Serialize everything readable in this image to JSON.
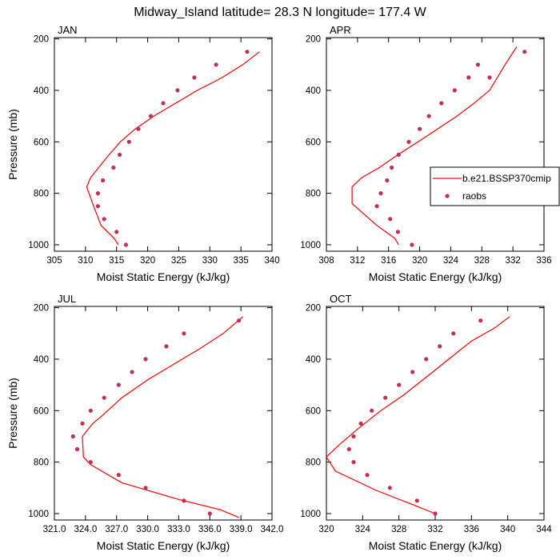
{
  "figure_title": "Midway_Island  latitude= 28.3 N longitude= 177.4 W",
  "colors": {
    "model_line": "#ff0000",
    "obs_marker": "#c0305a",
    "axes": "#000000"
  },
  "legend": {
    "placement": "right of APR panel",
    "entries": [
      {
        "label": "b.e21.BSSP370cmip",
        "style": "line",
        "color": "#ff0000"
      },
      {
        "label": "raobs",
        "style": "marker",
        "color": "#c0305a"
      }
    ]
  },
  "chart_data": [
    {
      "type": "line",
      "title": "JAN",
      "xlabel": "Moist Static Energy (kJ/kg)",
      "ylabel": "Pressure (mb)",
      "xlim": [
        305,
        340
      ],
      "ylim": [
        1025,
        195
      ],
      "y_inverted": true,
      "x_ticks": [
        305,
        310,
        315,
        320,
        325,
        330,
        335,
        340
      ],
      "x_tick_labels": [
        "305",
        "310",
        "315",
        "320",
        "325",
        "330",
        "335",
        "340"
      ],
      "y_ticks": [
        200,
        400,
        600,
        800,
        1000
      ],
      "y_tick_labels": [
        "200",
        "400",
        "600",
        "800",
        "1000"
      ],
      "show_ylabel": true,
      "series": [
        {
          "name": "b.e21.BSSP370cmip",
          "kind": "line",
          "x": [
            315.3,
            314.6,
            312.5,
            311.3,
            310.2,
            310.8,
            312.1,
            313.8,
            315.6,
            318.0,
            321.0,
            324.5,
            328.0,
            332.0,
            335.3,
            338.0
          ],
          "y": [
            1000,
            975,
            925,
            850,
            775,
            740,
            700,
            650,
            600,
            550,
            500,
            450,
            400,
            350,
            300,
            250
          ]
        },
        {
          "name": "raobs",
          "kind": "marker",
          "x": [
            316.5,
            315.0,
            313.0,
            312.0,
            312.0,
            312.8,
            314.5,
            315.5,
            317.0,
            318.5,
            320.5,
            322.5,
            324.8,
            327.5,
            331.0,
            336.0
          ],
          "y": [
            1000,
            950,
            900,
            850,
            800,
            750,
            700,
            650,
            600,
            550,
            500,
            450,
            400,
            350,
            300,
            250
          ]
        }
      ]
    },
    {
      "type": "line",
      "title": "APR",
      "xlabel": "Moist Static Energy (kJ/kg)",
      "ylabel": "",
      "xlim": [
        308,
        336
      ],
      "ylim": [
        1025,
        195
      ],
      "y_inverted": true,
      "x_ticks": [
        308,
        312,
        316,
        320,
        324,
        328,
        332,
        336
      ],
      "x_tick_labels": [
        "308",
        "312",
        "316",
        "320",
        "324",
        "328",
        "332",
        "336"
      ],
      "y_ticks": [
        200,
        400,
        600,
        800,
        1000
      ],
      "y_tick_labels": [
        "200",
        "400",
        "600",
        "800",
        "1000"
      ],
      "show_ylabel": false,
      "series": [
        {
          "name": "b.e21.BSSP370cmip",
          "kind": "line",
          "x": [
            317.3,
            316.8,
            314.5,
            311.3,
            311.3,
            312.5,
            314.8,
            317.2,
            319.8,
            322.3,
            324.8,
            327.0,
            329.0,
            331.0,
            332.5
          ],
          "y": [
            1000,
            975,
            925,
            840,
            775,
            740,
            700,
            650,
            600,
            550,
            500,
            450,
            400,
            300,
            230
          ]
        },
        {
          "name": "raobs",
          "kind": "marker",
          "x": [
            319.0,
            317.2,
            316.2,
            314.5,
            315.0,
            315.8,
            316.4,
            317.3,
            318.6,
            320.0,
            321.2,
            322.8,
            324.5,
            326.3,
            327.5,
            329.0,
            333.5
          ],
          "y": [
            1000,
            950,
            900,
            850,
            800,
            750,
            700,
            650,
            600,
            550,
            500,
            450,
            400,
            350,
            300,
            350,
            250
          ]
        }
      ]
    },
    {
      "type": "line",
      "title": "JUL",
      "xlabel": "Moist Static Energy (kJ/kg)",
      "ylabel": "Pressure (mb)",
      "xlim": [
        321.0,
        342.0
      ],
      "ylim": [
        1025,
        195
      ],
      "y_inverted": true,
      "x_ticks": [
        321.0,
        324.0,
        327.0,
        330.0,
        333.0,
        336.0,
        339.0,
        342.0
      ],
      "x_tick_labels": [
        "321.0",
        "324.0",
        "327.0",
        "330.0",
        "333.0",
        "336.0",
        "339.0",
        "342.0"
      ],
      "y_ticks": [
        200,
        400,
        600,
        800,
        1000
      ],
      "y_tick_labels": [
        "200",
        "400",
        "600",
        "800",
        "1000"
      ],
      "show_ylabel": true,
      "series": [
        {
          "name": "b.e21.BSSP370cmip",
          "kind": "line",
          "x": [
            338.8,
            337.0,
            333.0,
            327.5,
            324.5,
            323.8,
            323.7,
            324.7,
            325.6,
            327.5,
            330.0,
            332.5,
            335.0,
            337.3,
            339.2
          ],
          "y": [
            1015,
            985,
            945,
            880,
            810,
            780,
            700,
            650,
            620,
            550,
            480,
            420,
            360,
            300,
            235
          ]
        },
        {
          "name": "raobs",
          "kind": "marker",
          "x": [
            336.0,
            333.5,
            329.8,
            327.2,
            324.5,
            323.2,
            322.8,
            323.7,
            324.5,
            325.8,
            327.2,
            328.5,
            329.8,
            331.8,
            333.5,
            338.8
          ],
          "y": [
            1000,
            950,
            900,
            850,
            800,
            750,
            700,
            650,
            600,
            550,
            500,
            450,
            400,
            350,
            300,
            250
          ]
        }
      ]
    },
    {
      "type": "line",
      "title": "OCT",
      "xlabel": "Moist Static Energy (kJ/kg)",
      "ylabel": "",
      "xlim": [
        320,
        344
      ],
      "ylim": [
        1025,
        195
      ],
      "y_inverted": true,
      "x_ticks": [
        320,
        324,
        328,
        332,
        336,
        340,
        344
      ],
      "x_tick_labels": [
        "320",
        "324",
        "328",
        "332",
        "336",
        "340",
        "344"
      ],
      "y_ticks": [
        200,
        400,
        600,
        800,
        1000
      ],
      "y_tick_labels": [
        "200",
        "400",
        "600",
        "800",
        "1000"
      ],
      "show_ylabel": false,
      "series": [
        {
          "name": "b.e21.BSSP370cmip",
          "kind": "line",
          "x": [
            332.0,
            329.5,
            325.5,
            321.0,
            320.0,
            321.5,
            323.5,
            326.0,
            328.5,
            331.0,
            333.5,
            336.0,
            338.5,
            340.2
          ],
          "y": [
            1000,
            965,
            910,
            835,
            780,
            730,
            670,
            600,
            540,
            470,
            400,
            330,
            280,
            235
          ]
        },
        {
          "name": "raobs",
          "kind": "marker",
          "x": [
            332.0,
            330.0,
            327.0,
            324.5,
            323.0,
            322.5,
            323.0,
            323.8,
            325.0,
            326.5,
            328.0,
            329.5,
            331.0,
            332.5,
            334.0,
            337.0
          ],
          "y": [
            1000,
            950,
            900,
            850,
            800,
            750,
            700,
            650,
            600,
            550,
            500,
            450,
            400,
            350,
            300,
            250
          ]
        }
      ]
    }
  ]
}
